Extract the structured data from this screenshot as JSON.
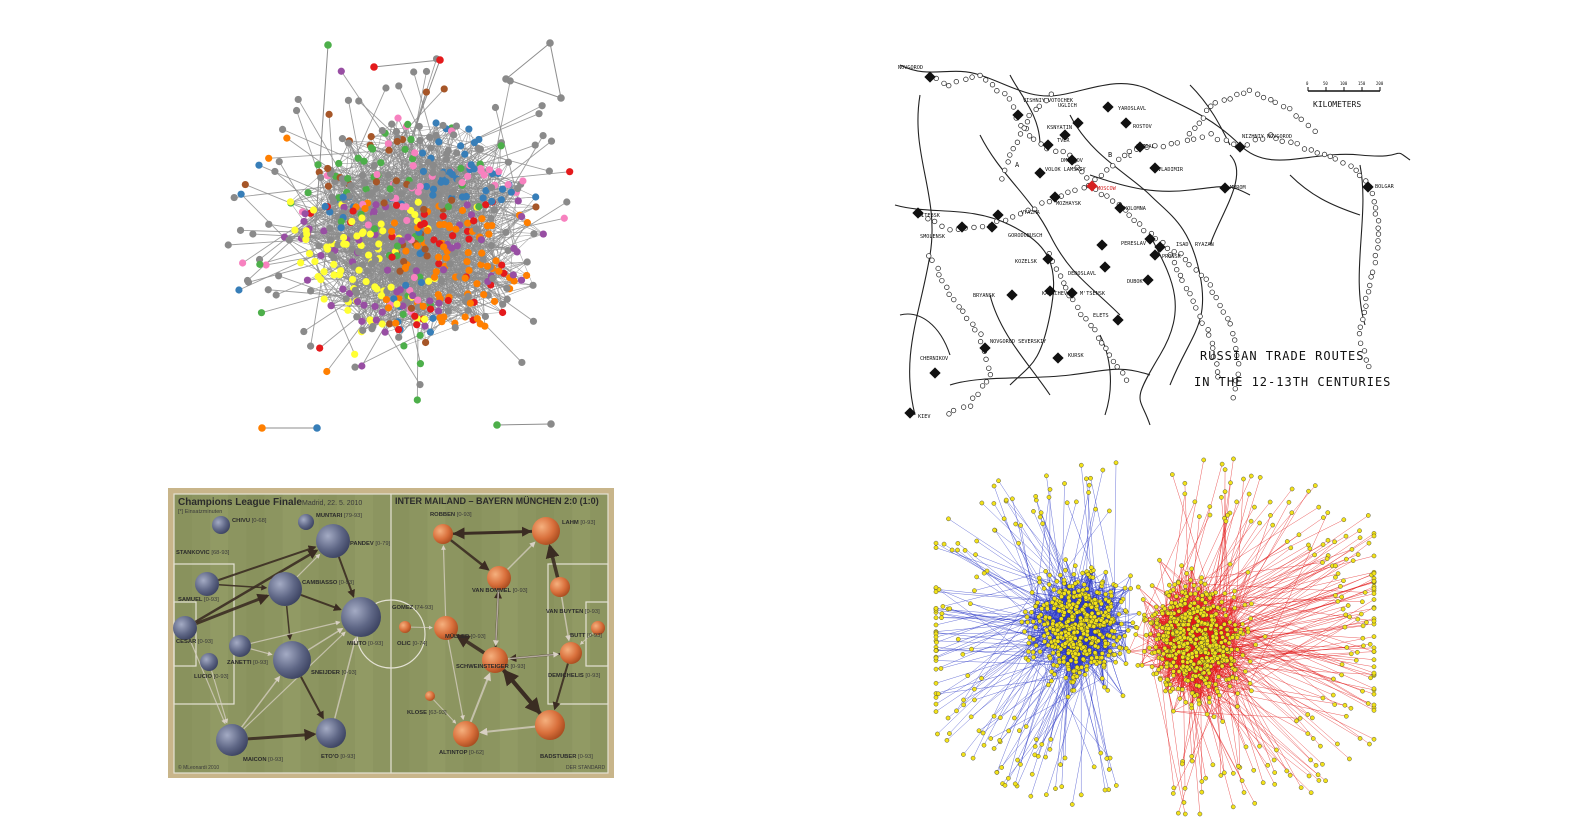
{
  "network_colors": [
    "#8a8a8a",
    "#e41a1c",
    "#377eb8",
    "#4daf4a",
    "#984ea3",
    "#ff7f00",
    "#ffff33",
    "#a65628",
    "#f781bf"
  ],
  "map": {
    "title_line1": "RUSSIAN TRADE ROUTES",
    "title_line2": "IN THE 12-13TH CENTURIES",
    "scale_label": "KILOMETERS",
    "scale_ticks": [
      "0",
      "50",
      "100",
      "150",
      "200"
    ],
    "cities": [
      {
        "name": "NOVGOROD",
        "label": "NOVGOROD"
      },
      {
        "name": "VISHNIY VOTOCHEK",
        "label": "VISHNIY VOTOCHEK"
      },
      {
        "name": "UGLICH",
        "label": "UGLICH"
      },
      {
        "name": "YAROSLAVL",
        "label": "YAROSLAVL"
      },
      {
        "name": "ROSTOV",
        "label": "ROSTOV"
      },
      {
        "name": "KSNYATIN",
        "label": "KSNYATIN"
      },
      {
        "name": "TVER",
        "label": "TVER"
      },
      {
        "name": "DMITROV",
        "label": "DMITROV"
      },
      {
        "name": "SUZDAL",
        "label": "SUZDAL"
      },
      {
        "name": "NIZHNIY NOVGOROD",
        "label": "NIZHNIY NOVGOROD"
      },
      {
        "name": "VLADIMIR",
        "label": "VLADIMIR"
      },
      {
        "name": "VOLOK LAMSKIY",
        "label": "VOLOK LAMSKIY"
      },
      {
        "name": "MOSCOW",
        "label": "MOSCOW"
      },
      {
        "name": "MUROM",
        "label": "MUROM"
      },
      {
        "name": "BOLGAR",
        "label": "BOLGAR"
      },
      {
        "name": "MOZHAYSK",
        "label": "MOZHAYSK"
      },
      {
        "name": "VITEBSK",
        "label": "VITEBSK"
      },
      {
        "name": "VYAZMA",
        "label": "VYAZMA"
      },
      {
        "name": "KOLOMNA",
        "label": "KOLOMNA"
      },
      {
        "name": "SMOLENSK",
        "label": "SMOLENSK"
      },
      {
        "name": "GORODOBUSCH",
        "label": "GORODOBUSCH"
      },
      {
        "name": "PERESLAV",
        "label": "PERESLAV"
      },
      {
        "name": "ISADY",
        "label": "ISAD'"
      },
      {
        "name": "RYAZAN",
        "label": "RYAZAN"
      },
      {
        "name": "PRONSK",
        "label": "PRONSK"
      },
      {
        "name": "KOZELSK",
        "label": "KOZELSK"
      },
      {
        "name": "DEDOSLAVL",
        "label": "DEDOSLAVL"
      },
      {
        "name": "DUBOK",
        "label": "DUBOK"
      },
      {
        "name": "BRYANSK",
        "label": "BRYANSK"
      },
      {
        "name": "KARACHEV",
        "label": "KARACHEV"
      },
      {
        "name": "MTSENSK",
        "label": "M'TSENSK"
      },
      {
        "name": "ELETS",
        "label": "ELETS"
      },
      {
        "name": "NOVGOROD SEVERSKIY",
        "label": "NOVGOROD SEVERSKIY"
      },
      {
        "name": "KURSK",
        "label": "KURSK"
      },
      {
        "name": "CHERNIKOV",
        "label": "CHERNIKOV"
      },
      {
        "name": "KIEV",
        "label": "KIEV"
      }
    ],
    "region_letters": [
      "A",
      "B",
      "C"
    ]
  },
  "soccer": {
    "left_title": "Champions League Finale",
    "left_subtitle": "Madrid, 22. 5. 2010",
    "left_note": "[*] Einsatzminuten",
    "right_title": "INTER MAILAND – BAYERN MÜNCHEN 2:0 (1:0)",
    "credit_left": "© MLeonardi 2010",
    "credit_right": "DER STANDARD",
    "inter_players": [
      {
        "name": "CHIVU",
        "minutes": "[0-68]"
      },
      {
        "name": "MUNTARI",
        "minutes": "[79-93]"
      },
      {
        "name": "STANKOVIC",
        "minutes": "[68-93]"
      },
      {
        "name": "PANDEV",
        "minutes": "[0-79]"
      },
      {
        "name": "CAMBIASSO",
        "minutes": "[0-93]"
      },
      {
        "name": "SAMUEL",
        "minutes": "[0-93]"
      },
      {
        "name": "CESAR",
        "minutes": "[0-93]"
      },
      {
        "name": "ZANETTI",
        "minutes": "[0-93]"
      },
      {
        "name": "MILITO",
        "minutes": "[0-93]"
      },
      {
        "name": "SNEIJDER",
        "minutes": "[0-93]"
      },
      {
        "name": "LUCIO",
        "minutes": "[0-93]"
      },
      {
        "name": "MAICON",
        "minutes": "[0-93]"
      },
      {
        "name": "ETO'O",
        "minutes": "[0-93]"
      }
    ],
    "bayern_players": [
      {
        "name": "ROBBEN",
        "minutes": "[0-93]"
      },
      {
        "name": "LAHM",
        "minutes": "[0-93]"
      },
      {
        "name": "VAN BOMMEL",
        "minutes": "[0-93]"
      },
      {
        "name": "GOMEZ",
        "minutes": "[74-93]"
      },
      {
        "name": "VAN BUYTEN",
        "minutes": "[0-93]"
      },
      {
        "name": "MÜLLER",
        "minutes": "[0-93]"
      },
      {
        "name": "OLIC",
        "minutes": "[0-74]"
      },
      {
        "name": "BUTT",
        "minutes": "[0-93]"
      },
      {
        "name": "SCHWEINSTEIGER",
        "minutes": "[0-93]"
      },
      {
        "name": "DEMICHELIS",
        "minutes": "[0-93]"
      },
      {
        "name": "KLOSE",
        "minutes": "[63-93]"
      },
      {
        "name": "ALTINTOP",
        "minutes": "[0-62]"
      },
      {
        "name": "BADSTUBER",
        "minutes": "[0-93]"
      }
    ]
  }
}
